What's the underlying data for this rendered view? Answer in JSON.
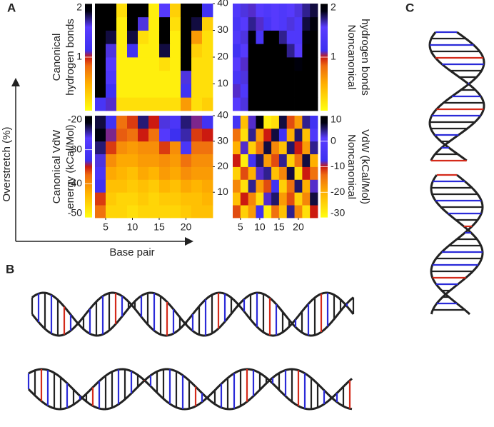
{
  "panel_labels": {
    "A": "A",
    "B": "B",
    "C": "C"
  },
  "axis_labels": {
    "y": "Overstretch (%)",
    "x": "Base pair"
  },
  "colorscale": [
    [
      0,
      "#ffff10"
    ],
    [
      0.25,
      "#ffb000"
    ],
    [
      0.42,
      "#ee6a10"
    ],
    [
      0.5,
      "#cc1a10"
    ],
    [
      0.56,
      "#3c30f0"
    ],
    [
      0.78,
      "#5a3cff"
    ],
    [
      0.93,
      "#000010"
    ],
    [
      1,
      "#000000"
    ]
  ],
  "chart_data": [
    {
      "type": "heatmap",
      "colorbar_label": [
        "Canonical",
        "hydrogen bonds"
      ],
      "x": [
        4,
        6,
        8,
        10,
        12,
        14,
        16,
        18,
        20,
        22,
        24
      ],
      "y": [
        2.5,
        7.5,
        12.5,
        17.5,
        22.5,
        27.5,
        32.5,
        37.5
      ],
      "xlim": [
        3,
        25
      ],
      "ylim": [
        0,
        40
      ],
      "yticks": [
        10,
        20,
        30,
        40
      ],
      "zlim": [
        0,
        2
      ],
      "zticks": [
        1,
        2
      ],
      "z": [
        [
          1.3,
          1.1,
          0.2,
          0.2,
          0.2,
          0.2,
          0.2,
          0.2,
          0.6,
          0.2,
          0.3
        ],
        [
          2,
          1.2,
          0.1,
          0.1,
          0.1,
          0.1,
          0.1,
          0.1,
          1.2,
          0.2,
          0.2
        ],
        [
          2,
          1.4,
          0.1,
          0.1,
          0.1,
          0.1,
          0.1,
          0.1,
          1.6,
          0.2,
          0.2
        ],
        [
          2,
          1.5,
          0.1,
          0.1,
          0.1,
          0.1,
          0.2,
          0.1,
          2,
          0.2,
          0.2
        ],
        [
          2,
          1.6,
          0.1,
          1.2,
          0.1,
          0.1,
          1.8,
          0.1,
          2,
          0.3,
          0.2
        ],
        [
          2,
          1.8,
          0.1,
          1.8,
          0.2,
          0.1,
          2,
          0.1,
          2,
          0.6,
          0.2
        ],
        [
          2,
          2,
          0.1,
          2,
          1.6,
          0.1,
          2,
          0.2,
          2,
          1.8,
          0.3
        ],
        [
          2,
          2,
          0.2,
          2,
          2,
          0.1,
          1.5,
          0.3,
          2,
          2,
          1.2
        ]
      ]
    },
    {
      "type": "heatmap",
      "colorbar_label": [
        "Noncanonical",
        "hydrogen bonds"
      ],
      "x": [
        4,
        6,
        8,
        10,
        12,
        14,
        16,
        18,
        20,
        22,
        24
      ],
      "y": [
        2.5,
        7.5,
        12.5,
        17.5,
        22.5,
        27.5,
        32.5,
        37.5
      ],
      "xlim": [
        3,
        25
      ],
      "ylim": [
        0,
        40
      ],
      "zlim": [
        0,
        2
      ],
      "zticks": [
        1,
        2
      ],
      "z": [
        [
          1.5,
          1.6,
          2,
          2,
          2,
          2,
          2,
          2,
          2,
          2,
          2
        ],
        [
          1.1,
          1.4,
          2,
          2,
          2,
          2,
          2,
          2,
          2,
          2,
          2
        ],
        [
          1.3,
          1.6,
          2,
          2,
          2,
          2,
          2,
          2,
          2,
          2,
          2
        ],
        [
          1.5,
          1.1,
          2,
          2,
          2,
          2,
          2,
          2,
          1.9,
          2,
          2
        ],
        [
          1.2,
          1.5,
          2,
          2,
          2,
          2,
          2,
          1.7,
          1.5,
          2,
          2
        ],
        [
          1.4,
          1.6,
          1.9,
          1.3,
          2,
          2,
          1.7,
          1.4,
          1.4,
          1.9,
          2
        ],
        [
          1.3,
          1.5,
          1.7,
          1.1,
          1.3,
          1.5,
          1.4,
          1.6,
          1.4,
          1.8,
          1.9
        ],
        [
          1.4,
          1.6,
          1.1,
          1.5,
          1.4,
          1.5,
          1.4,
          1.5,
          1.6,
          1.7,
          1.8
        ]
      ]
    },
    {
      "type": "heatmap",
      "colorbar_label": [
        "Canonical VdW",
        "energy (kCal/Mol)"
      ],
      "x": [
        4,
        6,
        8,
        10,
        12,
        14,
        16,
        18,
        20,
        22,
        24
      ],
      "y": [
        2.5,
        7.5,
        12.5,
        17.5,
        22.5,
        27.5,
        32.5,
        37.5
      ],
      "xlim": [
        3,
        25
      ],
      "ylim": [
        0,
        40
      ],
      "xticks": [
        5,
        10,
        15,
        20
      ],
      "yticks": [
        10,
        20,
        30,
        40
      ],
      "zlim": [
        -50,
        -20
      ],
      "zticks": [
        -50,
        -40,
        -30,
        -20
      ],
      "z": [
        [
          -38,
          -46,
          -46,
          -47,
          -46,
          -46,
          -46,
          -46,
          -45,
          -44,
          -44
        ],
        [
          -36,
          -45,
          -46,
          -46,
          -45,
          -46,
          -45,
          -45,
          -44,
          -44,
          -43
        ],
        [
          -32,
          -44,
          -44,
          -45,
          -44,
          -45,
          -43,
          -44,
          -42,
          -43,
          -42
        ],
        [
          -30,
          -42,
          -43,
          -44,
          -42,
          -43,
          -41,
          -42,
          -40,
          -41,
          -41
        ],
        [
          -26,
          -40,
          -42,
          -42,
          -41,
          -41,
          -40,
          -41,
          -38,
          -40,
          -40
        ],
        [
          -24,
          -36,
          -40,
          -41,
          -40,
          -40,
          -36,
          -40,
          -30,
          -38,
          -38
        ],
        [
          -22,
          -34,
          -37,
          -38,
          -35,
          -38,
          -28,
          -33,
          -25,
          -36,
          -35
        ],
        [
          -23,
          -32,
          -38,
          -36,
          -24,
          -35,
          -26,
          -30,
          -24,
          -34,
          -32
        ]
      ]
    },
    {
      "type": "heatmap",
      "colorbar_label": [
        "Noncanonical",
        "VdW (kCal/Mol)"
      ],
      "x": [
        4,
        6,
        8,
        10,
        12,
        14,
        16,
        18,
        20,
        22,
        24
      ],
      "y": [
        2.5,
        7.5,
        12.5,
        17.5,
        22.5,
        27.5,
        32.5,
        37.5
      ],
      "xlim": [
        3,
        25
      ],
      "ylim": [
        0,
        40
      ],
      "xticks": [
        5,
        10,
        15,
        20
      ],
      "zlim": [
        -30,
        10
      ],
      "zticks": [
        -30,
        -20,
        -10,
        0,
        10
      ],
      "z": [
        [
          -12,
          -24,
          -18,
          -6,
          -28,
          -14,
          -22,
          4,
          -16,
          -26,
          -10
        ],
        [
          -22,
          -10,
          -16,
          -26,
          -8,
          5,
          -18,
          -12,
          -24,
          -16,
          6
        ],
        [
          -16,
          -26,
          4,
          -18,
          -12,
          -6,
          -24,
          -14,
          5,
          -20,
          -8
        ],
        [
          -24,
          -12,
          -20,
          -8,
          4,
          -22,
          -16,
          6,
          -26,
          -10,
          -14
        ],
        [
          -10,
          -28,
          -6,
          5,
          -18,
          -12,
          4,
          -24,
          -14,
          6,
          -20
        ],
        [
          -20,
          -8,
          -24,
          -14,
          6,
          -16,
          -22,
          5,
          -10,
          -18,
          4
        ],
        [
          -14,
          -26,
          4,
          -18,
          -10,
          6,
          -6,
          -20,
          5,
          -22,
          -2
        ],
        [
          -5,
          -22,
          -8,
          8,
          -28,
          -26,
          6,
          -12,
          -18,
          4,
          -6
        ]
      ]
    }
  ]
}
